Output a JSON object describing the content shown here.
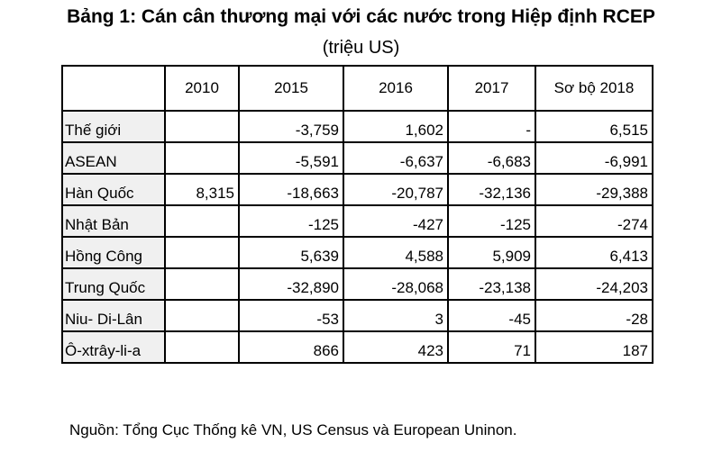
{
  "title": "Bảng 1: Cán cân thương mại với các nước trong Hiệp định RCEP",
  "subtitle": "(triệu US)",
  "table": {
    "headers": [
      "",
      "2010",
      "2015",
      "2016",
      "2017",
      "Sơ bộ 2018"
    ],
    "rows": [
      {
        "label": "Thế giới",
        "values": [
          "",
          "-3,759",
          "1,602",
          "-",
          "6,515"
        ]
      },
      {
        "label": "ASEAN",
        "values": [
          "",
          "-5,591",
          "-6,637",
          "-6,683",
          "-6,991"
        ]
      },
      {
        "label": "Hàn Quốc",
        "values": [
          "8,315",
          "-18,663",
          "-20,787",
          "-32,136",
          "-29,388"
        ]
      },
      {
        "label": "Nhật Bản",
        "values": [
          "",
          "-125",
          "-427",
          "-125",
          "-274"
        ]
      },
      {
        "label": "Hồng Công",
        "values": [
          "",
          "5,639",
          "4,588",
          "5,909",
          "6,413"
        ]
      },
      {
        "label": "Trung Quốc",
        "values": [
          "",
          "-32,890",
          "-28,068",
          "-23,138",
          "-24,203"
        ]
      },
      {
        "label": "Niu- Di-Lân",
        "values": [
          "",
          "-53",
          "3",
          "-45",
          "-28"
        ]
      },
      {
        "label": "Ô-xtrây-li-a",
        "values": [
          "",
          "866",
          "423",
          "71",
          "187"
        ]
      }
    ]
  },
  "source": "Nguồn: Tổng Cục Thống kê VN, US Census và European Uninon."
}
